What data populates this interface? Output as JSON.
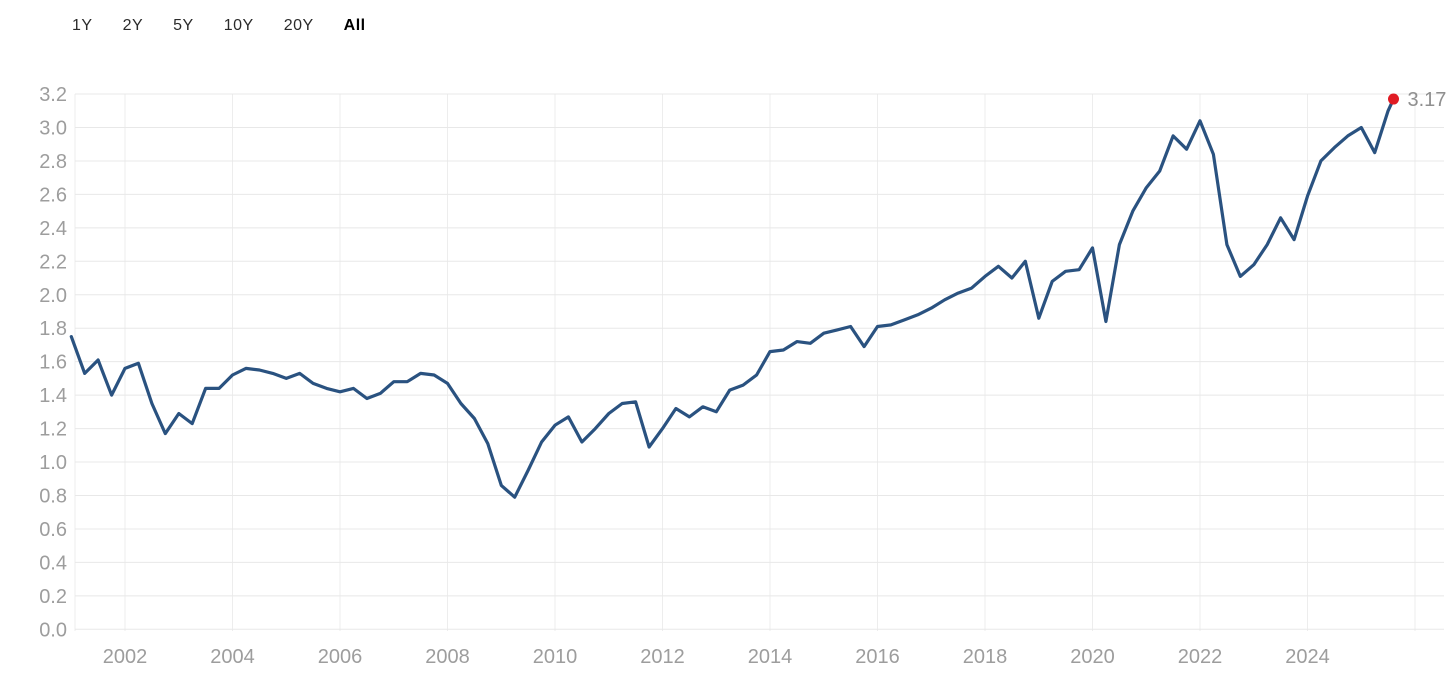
{
  "time_range_selector": {
    "options": [
      {
        "label": "1Y"
      },
      {
        "label": "2Y"
      },
      {
        "label": "5Y"
      },
      {
        "label": "10Y"
      },
      {
        "label": "20Y"
      },
      {
        "label": "All"
      }
    ],
    "selected_label": "All"
  },
  "chart_data": {
    "type": "line",
    "title": "",
    "xlabel": "",
    "ylabel": "",
    "grid": true,
    "legend_position": "none",
    "ylim": [
      0.0,
      3.2
    ],
    "xlim": [
      2000.9,
      2026.2
    ],
    "y_ticks": [
      3.2,
      3.0,
      2.8,
      2.6,
      2.4,
      2.2,
      2.0,
      1.8,
      1.6,
      1.4,
      1.2,
      1.0,
      0.8,
      0.6,
      0.4,
      0.2,
      0.0
    ],
    "x_ticks": [
      2002,
      2004,
      2006,
      2008,
      2010,
      2012,
      2014,
      2016,
      2018,
      2020,
      2022,
      2024
    ],
    "x_grid_unlabeled": [
      2026
    ],
    "x": [
      2001.0,
      2001.25,
      2001.5,
      2001.75,
      2002.0,
      2002.25,
      2002.5,
      2002.75,
      2003.0,
      2003.25,
      2003.5,
      2003.75,
      2004.0,
      2004.25,
      2004.5,
      2004.75,
      2005.0,
      2005.25,
      2005.5,
      2005.75,
      2006.0,
      2006.25,
      2006.5,
      2006.75,
      2007.0,
      2007.25,
      2007.5,
      2007.75,
      2008.0,
      2008.25,
      2008.5,
      2008.75,
      2009.0,
      2009.25,
      2009.5,
      2009.75,
      2010.0,
      2010.25,
      2010.5,
      2010.75,
      2011.0,
      2011.25,
      2011.5,
      2011.75,
      2012.0,
      2012.25,
      2012.5,
      2012.75,
      2013.0,
      2013.25,
      2013.5,
      2013.75,
      2014.0,
      2014.25,
      2014.5,
      2014.75,
      2015.0,
      2015.25,
      2015.5,
      2015.75,
      2016.0,
      2016.25,
      2016.5,
      2016.75,
      2017.0,
      2017.25,
      2017.5,
      2017.75,
      2018.0,
      2018.25,
      2018.5,
      2018.75,
      2019.0,
      2019.25,
      2019.5,
      2019.75,
      2020.0,
      2020.25,
      2020.5,
      2020.75,
      2021.0,
      2021.25,
      2021.5,
      2021.75,
      2022.0,
      2022.25,
      2022.5,
      2022.75,
      2023.0,
      2023.25,
      2023.5,
      2023.75,
      2024.0,
      2024.25,
      2024.5,
      2024.75,
      2025.0,
      2025.25,
      2025.5,
      2025.6
    ],
    "values": [
      1.75,
      1.53,
      1.61,
      1.4,
      1.56,
      1.59,
      1.35,
      1.17,
      1.29,
      1.23,
      1.44,
      1.44,
      1.52,
      1.56,
      1.55,
      1.53,
      1.5,
      1.53,
      1.47,
      1.44,
      1.42,
      1.44,
      1.38,
      1.41,
      1.48,
      1.48,
      1.53,
      1.52,
      1.47,
      1.35,
      1.26,
      1.11,
      0.86,
      0.79,
      0.95,
      1.12,
      1.22,
      1.27,
      1.12,
      1.2,
      1.29,
      1.35,
      1.36,
      1.09,
      1.2,
      1.32,
      1.27,
      1.33,
      1.3,
      1.43,
      1.46,
      1.52,
      1.66,
      1.67,
      1.72,
      1.71,
      1.77,
      1.79,
      1.81,
      1.69,
      1.81,
      1.82,
      1.85,
      1.88,
      1.92,
      1.97,
      2.01,
      2.04,
      2.11,
      2.17,
      2.1,
      2.2,
      1.86,
      2.08,
      2.14,
      2.15,
      2.28,
      1.84,
      2.3,
      2.5,
      2.64,
      2.74,
      2.95,
      2.87,
      3.04,
      2.84,
      2.3,
      2.11,
      2.18,
      2.3,
      2.46,
      2.33,
      2.59,
      2.8,
      2.88,
      2.95,
      3.0,
      2.85,
      3.1,
      3.17
    ],
    "current_value_label": "3.17",
    "line_color": "#2a5280",
    "dot_color": "#e01b24",
    "axis_label_color": "#9d9d9d",
    "value_label_color": "#8f8f8f",
    "h_grid_color": "#e8e8e8",
    "v_grid_color": "#ededed"
  }
}
